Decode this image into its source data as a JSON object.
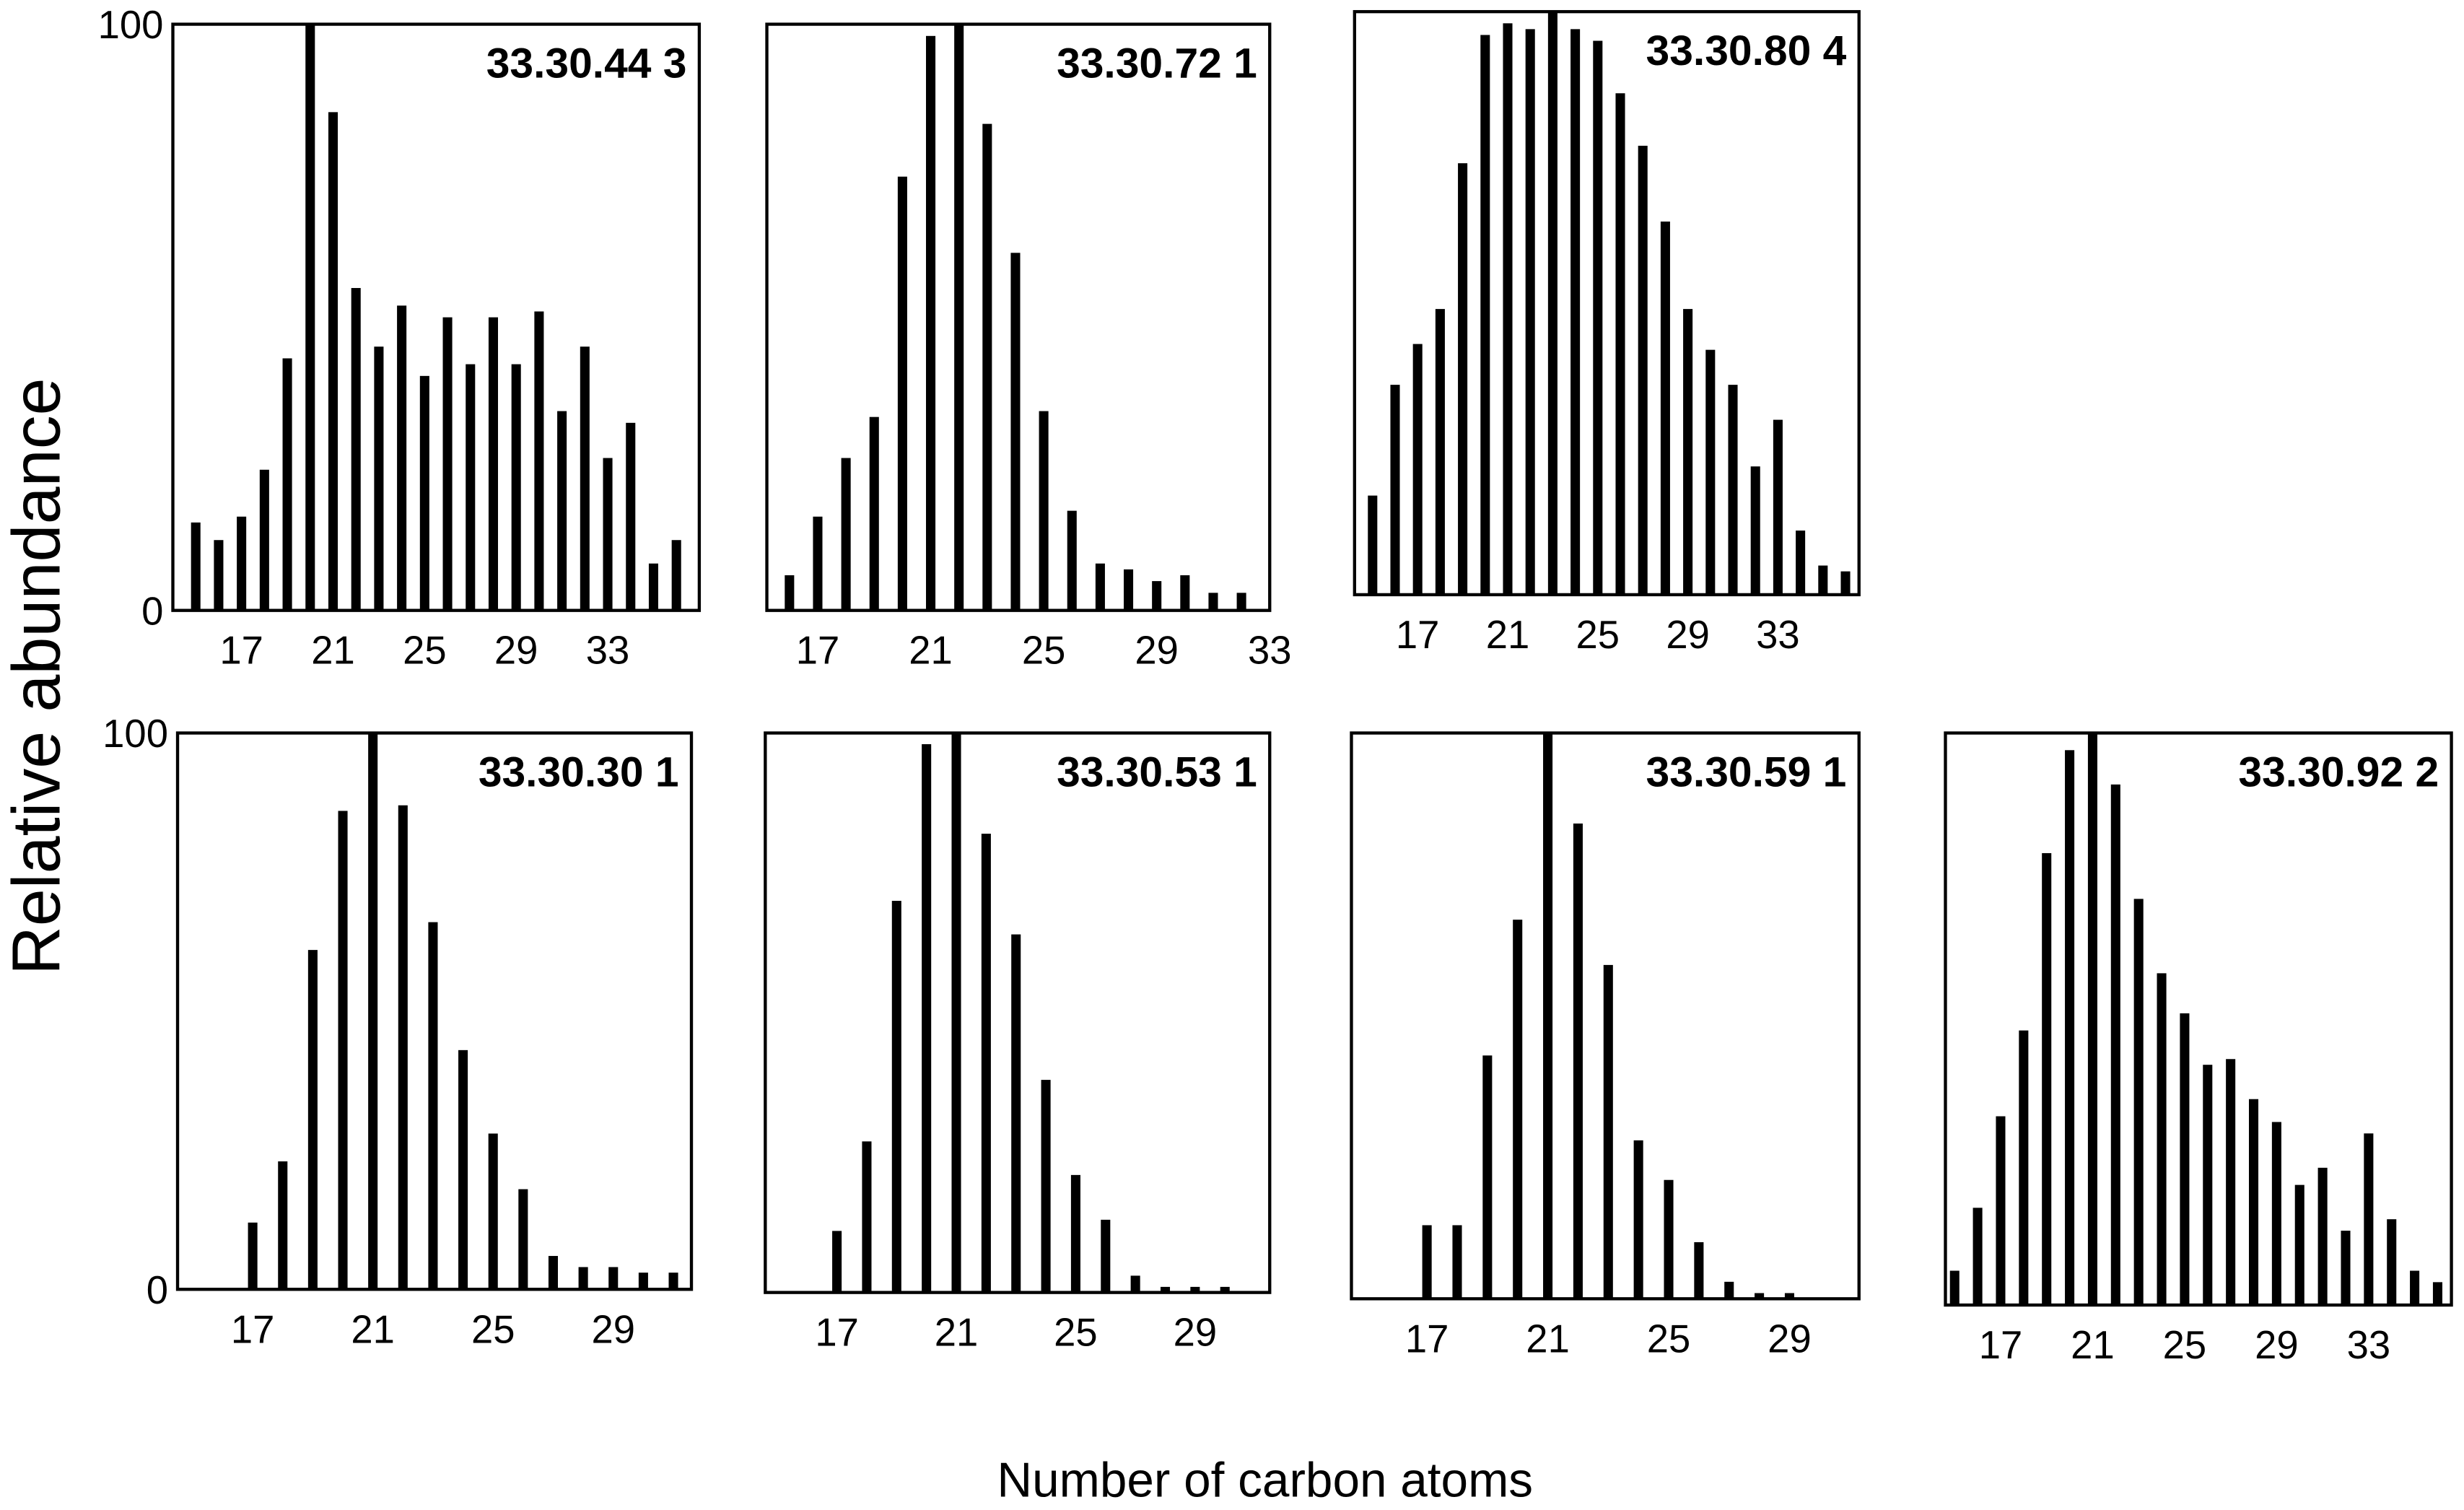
{
  "ylabel": "Relative abundance",
  "xlabel": "Number of carbon atoms",
  "chart_data": [
    {
      "type": "bar",
      "title": "33.30.44 3",
      "color": "#000000",
      "x": [
        15,
        16,
        17,
        18,
        19,
        20,
        21,
        22,
        23,
        24,
        25,
        26,
        27,
        28,
        29,
        30,
        31,
        32,
        33,
        34,
        35,
        36
      ],
      "values": [
        15,
        12,
        16,
        24,
        43,
        100,
        85,
        55,
        45,
        52,
        40,
        50,
        42,
        50,
        42,
        51,
        34,
        45,
        26,
        32,
        8,
        12
      ],
      "xlim": [
        14,
        37
      ],
      "xticks": [
        17,
        21,
        25,
        29,
        33
      ],
      "ylim": [
        0,
        100
      ],
      "yticks": [
        0,
        100
      ]
    },
    {
      "type": "bar",
      "title": "33.30.72 1",
      "color": "#000000",
      "x": [
        16,
        17,
        18,
        19,
        20,
        21,
        22,
        23,
        24,
        25,
        26,
        27,
        28,
        29,
        30,
        31,
        32
      ],
      "values": [
        6,
        16,
        26,
        33,
        74,
        98,
        100,
        83,
        61,
        34,
        17,
        8,
        7,
        5,
        6,
        3,
        3
      ],
      "xlim": [
        15.2,
        33
      ],
      "xticks": [
        17,
        21,
        25,
        29,
        33
      ],
      "ylim": [
        0,
        100
      ]
    },
    {
      "type": "bar",
      "title": "33.30.80 4",
      "color": "#000000",
      "x": [
        15,
        16,
        17,
        18,
        19,
        20,
        21,
        22,
        23,
        24,
        25,
        26,
        27,
        28,
        29,
        30,
        31,
        32,
        33,
        34,
        35,
        36
      ],
      "values": [
        17,
        36,
        43,
        49,
        74,
        96,
        98,
        97,
        100,
        97,
        95,
        86,
        77,
        64,
        49,
        42,
        36,
        22,
        30,
        11,
        5,
        4
      ],
      "xlim": [
        14.2,
        36.6
      ],
      "xticks": [
        17,
        21,
        25,
        29,
        33
      ],
      "ylim": [
        0,
        100
      ]
    },
    {
      "type": "bar",
      "title": "33.30.30 1",
      "color": "#000000",
      "x": [
        17,
        18,
        19,
        20,
        21,
        22,
        23,
        24,
        25,
        26,
        27,
        28,
        29,
        30,
        31
      ],
      "values": [
        12,
        23,
        61,
        86,
        100,
        87,
        66,
        43,
        28,
        18,
        6,
        4,
        4,
        3,
        3
      ],
      "xlim": [
        14.5,
        31.6
      ],
      "xticks": [
        17,
        21,
        25,
        29
      ],
      "ylim": [
        0,
        100
      ],
      "yticks": [
        0,
        100
      ]
    },
    {
      "type": "bar",
      "title": "33.30.53 1",
      "color": "#000000",
      "x": [
        17,
        18,
        19,
        20,
        21,
        22,
        23,
        24,
        25,
        26,
        27,
        28,
        29,
        30
      ],
      "values": [
        11,
        27,
        70,
        98,
        100,
        82,
        64,
        38,
        21,
        13,
        3,
        1,
        1,
        1
      ],
      "xlim": [
        14.6,
        31.5
      ],
      "xticks": [
        17,
        21,
        25,
        29
      ],
      "ylim": [
        0,
        100
      ]
    },
    {
      "type": "bar",
      "title": "33.30.59 1",
      "color": "#000000",
      "x": [
        17,
        18,
        19,
        20,
        21,
        22,
        23,
        24,
        25,
        26,
        27,
        28,
        29
      ],
      "values": [
        13,
        13,
        43,
        67,
        100,
        84,
        59,
        28,
        21,
        10,
        3,
        1,
        1
      ],
      "xlim": [
        14.5,
        31.3
      ],
      "xticks": [
        17,
        21,
        25,
        29
      ],
      "ylim": [
        0,
        100
      ]
    },
    {
      "type": "bar",
      "title": "33.30.92 2",
      "color": "#000000",
      "x": [
        15,
        16,
        17,
        18,
        19,
        20,
        21,
        22,
        23,
        24,
        25,
        26,
        27,
        28,
        29,
        30,
        31,
        32,
        33,
        34,
        35,
        36
      ],
      "values": [
        6,
        17,
        33,
        48,
        79,
        97,
        100,
        91,
        71,
        58,
        51,
        42,
        43,
        36,
        32,
        21,
        24,
        13,
        30,
        15,
        6,
        4
      ],
      "xlim": [
        14.6,
        36.6
      ],
      "xticks": [
        17,
        21,
        25,
        29,
        33
      ],
      "ylim": [
        0,
        100
      ]
    }
  ]
}
